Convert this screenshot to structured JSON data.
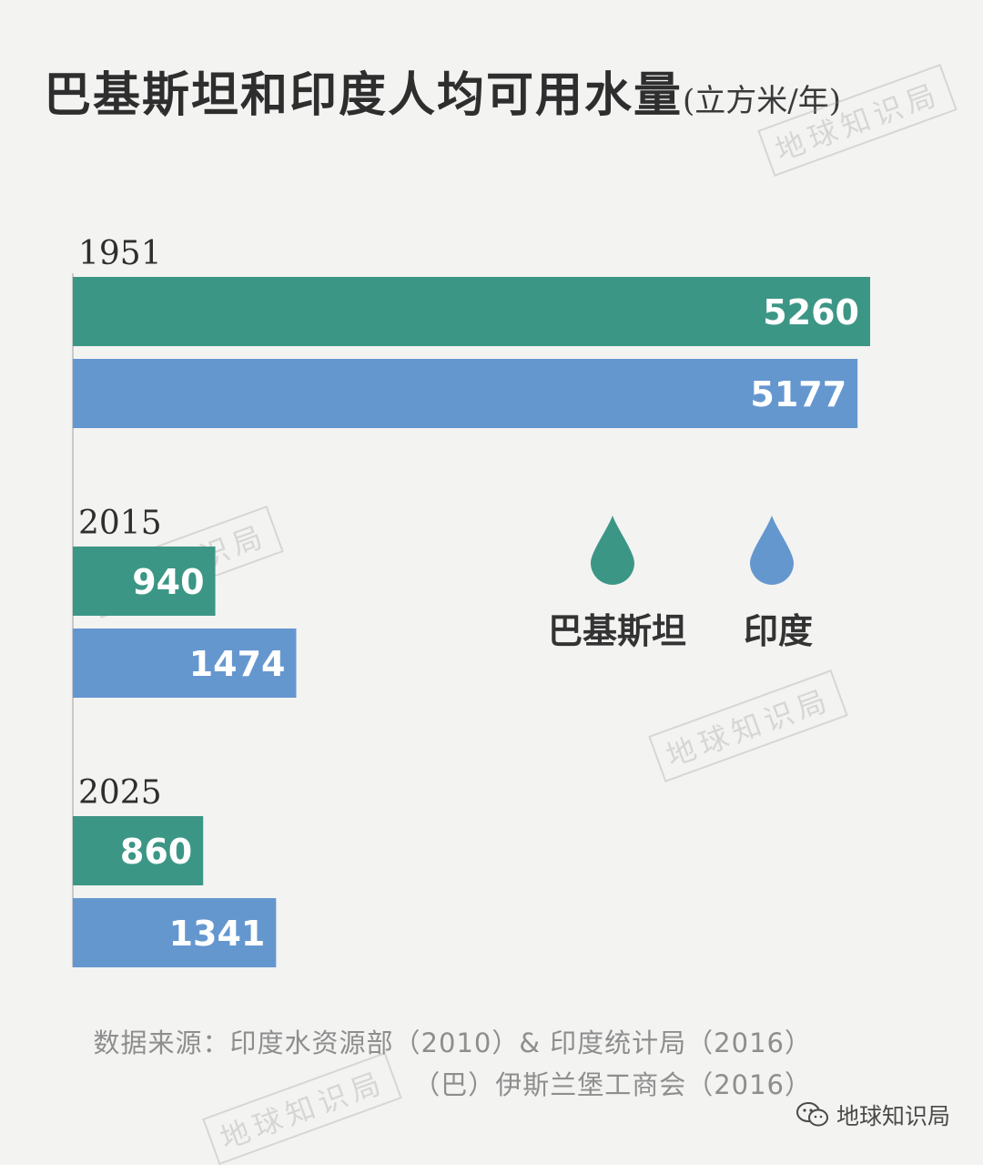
{
  "title": {
    "main": "巴基斯坦和印度人均可用水量",
    "unit": "(立方米/年)"
  },
  "chart_data": {
    "type": "bar",
    "orientation": "horizontal",
    "categories": [
      "1951",
      "2015",
      "2025"
    ],
    "series": [
      {
        "name": "巴基斯坦",
        "color": "#3c9685",
        "values": [
          5260,
          940,
          860
        ]
      },
      {
        "name": "印度",
        "color": "#6597cf",
        "values": [
          5177,
          1474,
          1341
        ]
      }
    ],
    "value_labels": {
      "巴基斯坦": [
        "5260",
        "940",
        "860"
      ],
      "印度": [
        "5177",
        "1474",
        "1341"
      ]
    },
    "xlim": [
      0,
      5300
    ],
    "grid": false,
    "legend_placement": "center-right"
  },
  "legend": [
    {
      "label": "巴基斯坦",
      "icon": "water-drop-icon",
      "color": "#3c9685"
    },
    {
      "label": "印度",
      "icon": "water-drop-icon",
      "color": "#6597cf"
    }
  ],
  "source": {
    "line1": "数据来源：印度水资源部（2010）& 印度统计局（2016）",
    "line2": "（巴）伊斯兰堡工商会（2016）"
  },
  "watermark": "地球知识局",
  "brand": {
    "icon": "wechat-icon",
    "label": "地球知识局"
  }
}
